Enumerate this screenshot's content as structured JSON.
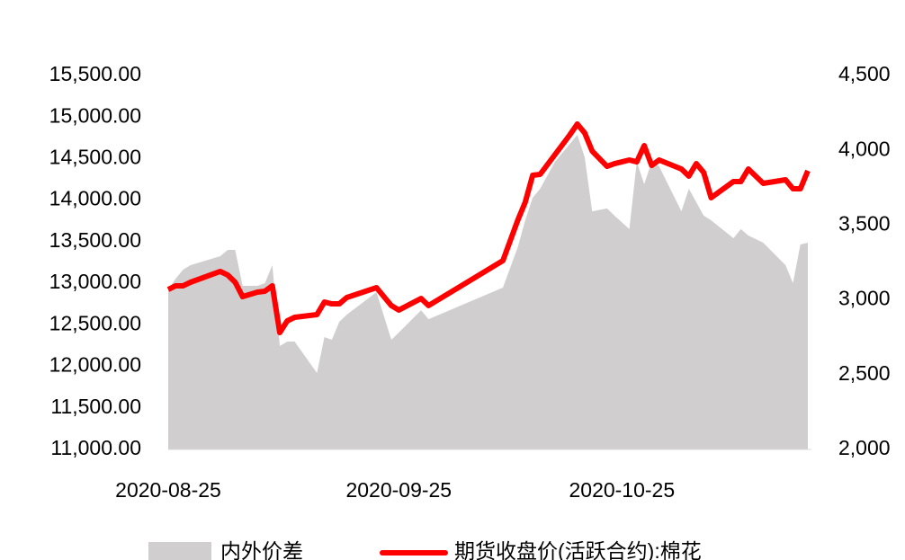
{
  "chart_data": {
    "type": "line",
    "x": [
      "2020-08-25",
      "2020-08-26",
      "2020-08-27",
      "2020-08-28",
      "2020-09-01",
      "2020-09-02",
      "2020-09-03",
      "2020-09-04",
      "2020-09-06",
      "2020-09-07",
      "2020-09-08",
      "2020-09-09",
      "2020-09-10",
      "2020-09-11",
      "2020-09-14",
      "2020-09-15",
      "2020-09-16",
      "2020-09-17",
      "2020-09-18",
      "2020-09-22",
      "2020-09-24",
      "2020-09-25",
      "2020-09-28",
      "2020-09-29",
      "2020-10-09",
      "2020-10-11",
      "2020-10-12",
      "2020-10-13",
      "2020-10-14",
      "2020-10-16",
      "2020-10-18",
      "2020-10-19",
      "2020-10-20",
      "2020-10-21",
      "2020-10-23",
      "2020-10-24",
      "2020-10-26",
      "2020-10-27",
      "2020-10-28",
      "2020-10-29",
      "2020-10-30",
      "2020-11-02",
      "2020-11-03",
      "2020-11-04",
      "2020-11-05",
      "2020-11-06",
      "2020-11-09",
      "2020-11-10",
      "2020-11-11",
      "2020-11-13",
      "2020-11-16",
      "2020-11-17",
      "2020-11-18",
      "2020-11-19"
    ],
    "series": [
      {
        "name": "内外价差",
        "color": "#d0cece",
        "kind": "area",
        "axis": "y2",
        "values": [
          3070,
          3142,
          3202,
          3232,
          3292,
          3334,
          3334,
          3094,
          3094,
          3112,
          3232,
          2691,
          2721,
          2721,
          2511,
          2751,
          2733,
          2853,
          2901,
          3052,
          2733,
          2781,
          2931,
          2871,
          3082,
          3352,
          3532,
          3683,
          3743,
          3923,
          4043,
          4103,
          3953,
          3592,
          3611,
          3563,
          3473,
          3923,
          3773,
          3923,
          3893,
          3592,
          3743,
          3653,
          3563,
          3532,
          3412,
          3473,
          3430,
          3382,
          3232,
          3112,
          3370,
          3382
        ]
      },
      {
        "name": "期货收盘价(活跃合约):棉花",
        "color": "#ff0000",
        "kind": "line",
        "axis": "y",
        "values": [
          12925,
          12969,
          12969,
          13012,
          13142,
          13099,
          13012,
          12839,
          12893,
          12904,
          12969,
          12406,
          12547,
          12590,
          12623,
          12774,
          12752,
          12752,
          12828,
          12947,
          12731,
          12677,
          12817,
          12731,
          13272,
          13759,
          13975,
          14299,
          14310,
          14548,
          14786,
          14916,
          14808,
          14591,
          14407,
          14439,
          14483,
          14461,
          14656,
          14418,
          14483,
          14375,
          14289,
          14440,
          14332,
          14029,
          14224,
          14224,
          14375,
          14202,
          14245,
          14137,
          14137,
          14354
        ]
      }
    ],
    "xlim": [
      "2020-08-25",
      "2020-11-19"
    ],
    "xticks": [
      "2020-08-25",
      "2020-09-25",
      "2020-10-25"
    ],
    "ylim": [
      11000,
      15500
    ],
    "yticks": [
      {
        "value": 11000,
        "label": "11,000.00"
      },
      {
        "value": 11500,
        "label": "11,500.00"
      },
      {
        "value": 12000,
        "label": "12,000.00"
      },
      {
        "value": 12500,
        "label": "12,500.00"
      },
      {
        "value": 13000,
        "label": "13,000.00"
      },
      {
        "value": 13500,
        "label": "13,500.00"
      },
      {
        "value": 14000,
        "label": "14,000.00"
      },
      {
        "value": 14500,
        "label": "14,500.00"
      },
      {
        "value": 15000,
        "label": "15,000.00"
      },
      {
        "value": 15500,
        "label": "15,500.00"
      }
    ],
    "y2lim": [
      2000,
      4500
    ],
    "y2ticks": [
      {
        "value": 2000,
        "label": "2,000"
      },
      {
        "value": 2500,
        "label": "2,500"
      },
      {
        "value": 3000,
        "label": "3,000"
      },
      {
        "value": 3500,
        "label": "3,500"
      },
      {
        "value": 4000,
        "label": "4,000"
      },
      {
        "value": 4500,
        "label": "4,500"
      }
    ],
    "legend": "bottom"
  }
}
